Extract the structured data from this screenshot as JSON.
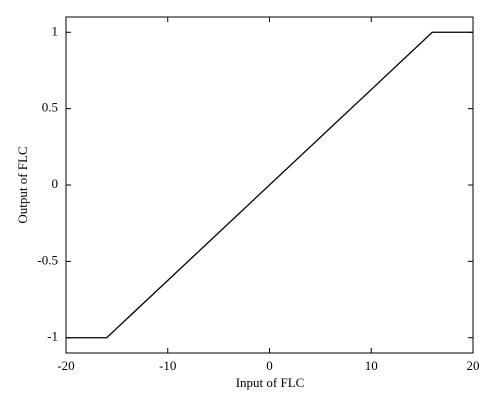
{
  "chart_data": {
    "type": "line",
    "x_label": "Input of FLC",
    "y_label": "Output of FLC",
    "x": [
      -20,
      -16,
      16,
      20
    ],
    "y": [
      -1,
      -1,
      1,
      1
    ],
    "color": "#000000",
    "xlim": [
      -20,
      20
    ],
    "xticks": [
      -20,
      -10,
      0,
      10,
      20
    ],
    "ylim": [
      -1.1,
      1.1
    ],
    "yticks": [
      -1,
      -0.5,
      0,
      0.5,
      1
    ],
    "grid": false
  }
}
